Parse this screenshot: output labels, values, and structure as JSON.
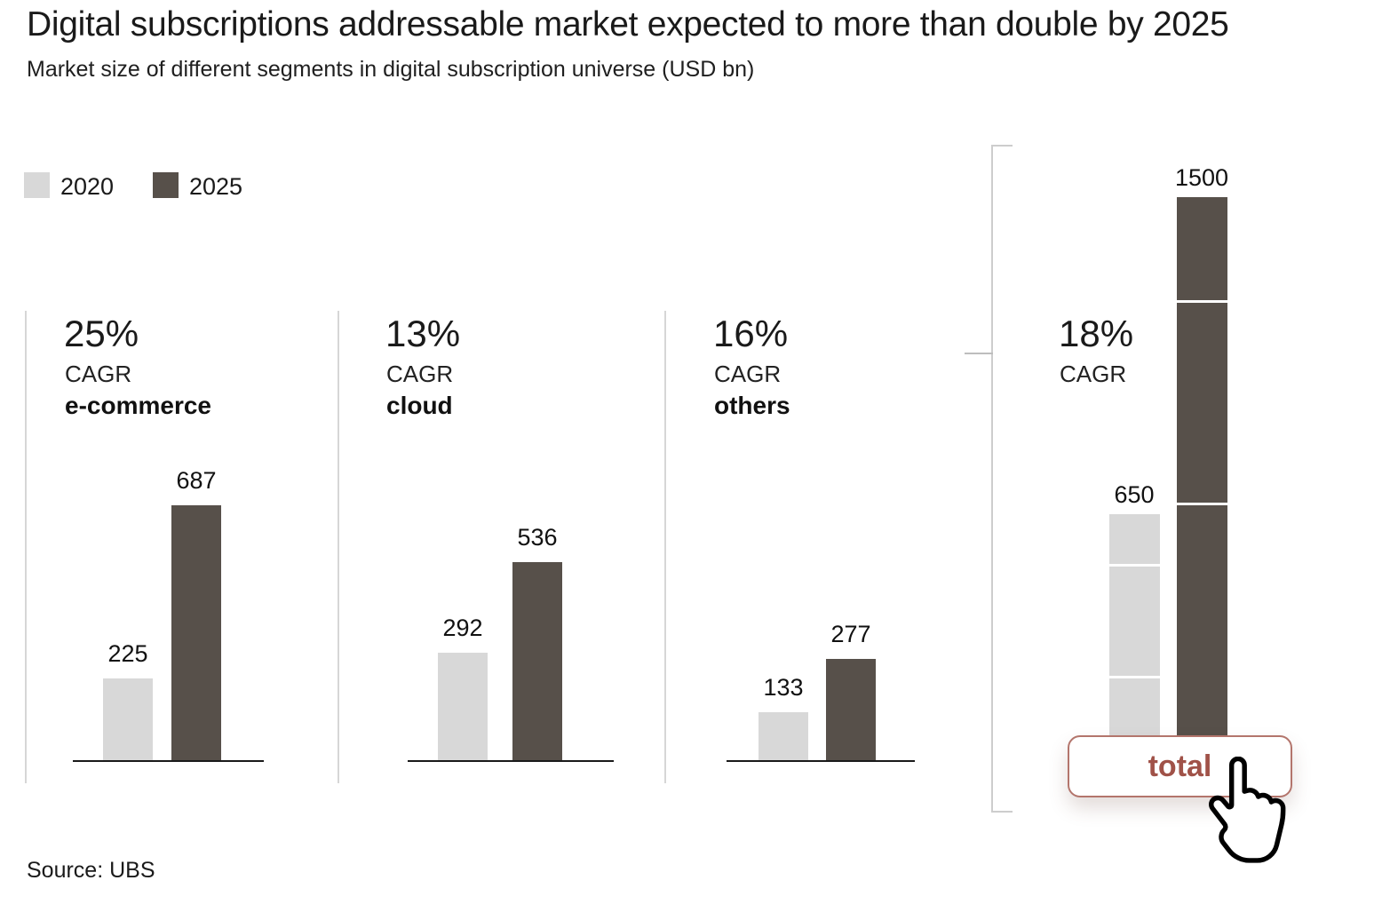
{
  "header": {
    "title": "Digital subscriptions addressable market expected to more than double by 2025",
    "subtitle": "Market size of different segments in digital subscription universe (USD bn)"
  },
  "legend": {
    "items": [
      {
        "label": "2020",
        "color": "#d8d8d8"
      },
      {
        "label": "2025",
        "color": "#57504a"
      }
    ]
  },
  "chart_data": {
    "type": "bar",
    "unit": "USD bn",
    "title": "Digital subscriptions addressable market expected to more than double by 2025",
    "subtitle": "Market size of different segments in digital subscription universe (USD bn)",
    "categories": [
      "2020",
      "2025"
    ],
    "legend_position": "top-left",
    "grid": false,
    "panels": [
      {
        "name": "e-commerce",
        "cagr": "25%",
        "cagr_label": "CAGR",
        "v2020": 225,
        "v2025": 687
      },
      {
        "name": "cloud",
        "cagr": "13%",
        "cagr_label": "CAGR",
        "v2020": 292,
        "v2025": 536
      },
      {
        "name": "others",
        "cagr": "16%",
        "cagr_label": "CAGR",
        "v2020": 133,
        "v2025": 277
      },
      {
        "name": "total",
        "cagr": "18%",
        "cagr_label": "CAGR",
        "v2020": 650,
        "v2025": 1500,
        "stacked": true,
        "segments_top_to_bottom": [
          "others",
          "cloud",
          "e-commerce"
        ],
        "seg2020": [
          133,
          292,
          225
        ],
        "seg2025": [
          277,
          536,
          687
        ]
      }
    ]
  },
  "total_button": {
    "label": "total"
  },
  "icons": {
    "hand_cursor": "pointing-hand-cursor"
  },
  "colors": {
    "bar_2020": "#d8d8d8",
    "bar_2025": "#57504a",
    "button_accent": "#a05248",
    "button_border": "#b3756c",
    "text": "#1a1a1a"
  },
  "source": "Source: UBS"
}
